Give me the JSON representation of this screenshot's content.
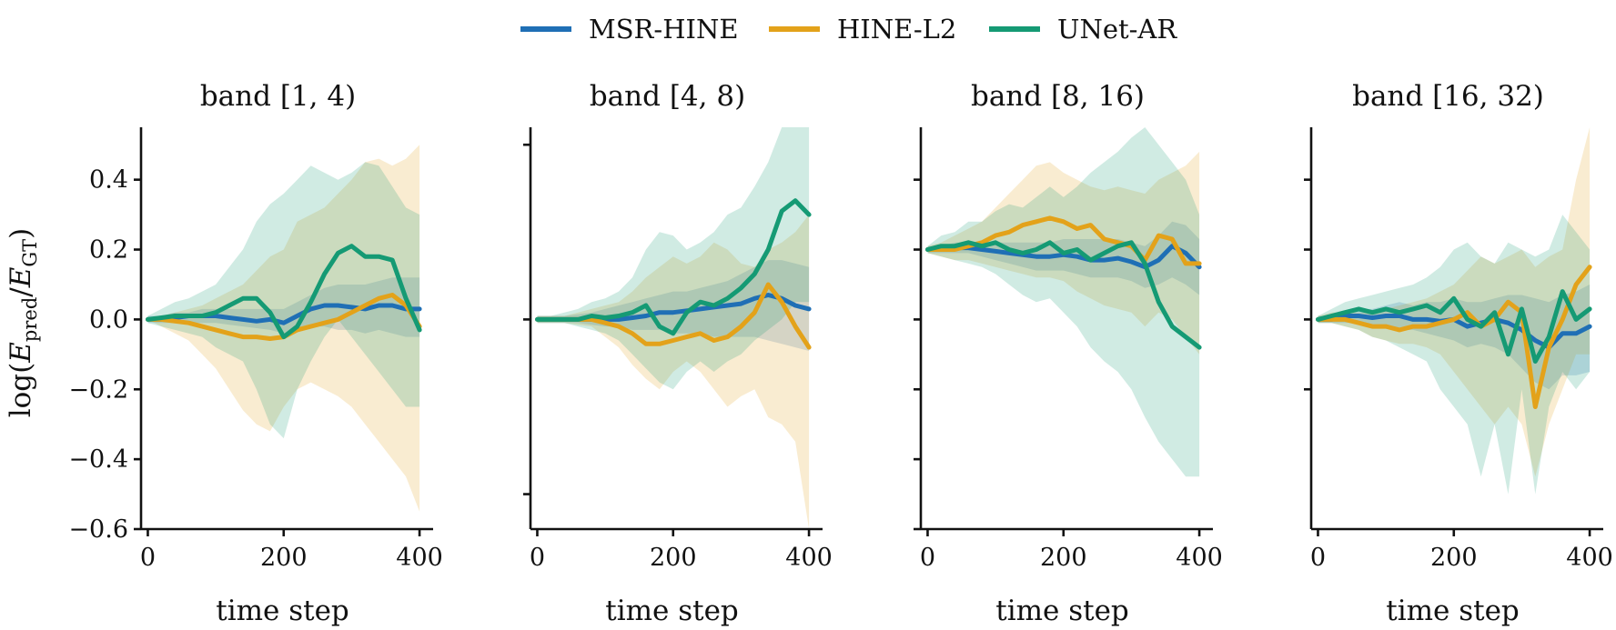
{
  "legend": {
    "entries": [
      {
        "name": "MSR-HINE",
        "color": "#1f6fb5"
      },
      {
        "name": "HINE-L2",
        "color": "#e3a21a"
      },
      {
        "name": "UNet-AR",
        "color": "#159a74"
      }
    ]
  },
  "chart_data": [
    {
      "type": "line",
      "title": "band [1, 4)",
      "xlabel": "time step",
      "ylabel": "log(E_pred/E_GT)",
      "ylim": [
        -0.6,
        0.55
      ],
      "xlim": [
        -10,
        420
      ],
      "xticks": [
        0,
        200,
        400
      ],
      "xtick_labels": [
        "0",
        "200",
        "400"
      ],
      "yticks": [
        -0.6,
        -0.4,
        -0.2,
        0.0,
        0.2,
        0.4
      ],
      "ytick_labels": [
        "−0.6",
        "−0.4",
        "−0.2",
        "0.0",
        "0.2",
        "0.4"
      ],
      "x": [
        0,
        20,
        40,
        60,
        80,
        100,
        120,
        140,
        160,
        180,
        200,
        220,
        240,
        260,
        280,
        300,
        320,
        340,
        360,
        380,
        400
      ],
      "series": [
        {
          "name": "MSR-HINE",
          "values": [
            0,
            0,
            0.005,
            0.01,
            0.01,
            0.01,
            0.005,
            0.0,
            -0.005,
            0.0,
            -0.01,
            0.01,
            0.03,
            0.04,
            0.04,
            0.035,
            0.03,
            0.04,
            0.04,
            0.03,
            0.03
          ],
          "lower": [
            -0.01,
            -0.01,
            -0.01,
            -0.01,
            -0.01,
            -0.01,
            -0.015,
            -0.02,
            -0.025,
            -0.03,
            -0.04,
            -0.03,
            -0.02,
            -0.02,
            -0.03,
            -0.03,
            -0.04,
            -0.03,
            -0.04,
            -0.05,
            -0.05
          ],
          "upper": [
            0.01,
            0.01,
            0.02,
            0.02,
            0.03,
            0.03,
            0.03,
            0.03,
            0.03,
            0.03,
            0.03,
            0.05,
            0.07,
            0.09,
            0.1,
            0.1,
            0.1,
            0.11,
            0.12,
            0.12,
            0.12
          ]
        },
        {
          "name": "HINE-L2",
          "values": [
            0,
            0,
            -0.005,
            -0.01,
            -0.02,
            -0.03,
            -0.04,
            -0.05,
            -0.05,
            -0.055,
            -0.05,
            -0.03,
            -0.02,
            -0.01,
            0.0,
            0.02,
            0.04,
            0.06,
            0.07,
            0.04,
            -0.02
          ],
          "lower": [
            0,
            -0.02,
            -0.04,
            -0.06,
            -0.1,
            -0.14,
            -0.2,
            -0.26,
            -0.3,
            -0.32,
            -0.25,
            -0.2,
            -0.18,
            -0.2,
            -0.22,
            -0.25,
            -0.3,
            -0.35,
            -0.4,
            -0.45,
            -0.55
          ],
          "upper": [
            0,
            0.01,
            0.02,
            0.03,
            0.04,
            0.06,
            0.08,
            0.1,
            0.14,
            0.18,
            0.2,
            0.28,
            0.3,
            0.32,
            0.36,
            0.4,
            0.45,
            0.46,
            0.44,
            0.46,
            0.5
          ]
        },
        {
          "name": "UNet-AR",
          "values": [
            0,
            0.005,
            0.01,
            0.01,
            0.01,
            0.02,
            0.04,
            0.06,
            0.06,
            0.02,
            -0.05,
            -0.02,
            0.05,
            0.13,
            0.19,
            0.21,
            0.18,
            0.18,
            0.17,
            0.06,
            -0.03
          ],
          "lower": [
            -0.01,
            -0.02,
            -0.03,
            -0.04,
            -0.05,
            -0.08,
            -0.1,
            -0.12,
            -0.2,
            -0.3,
            -0.34,
            -0.2,
            -0.12,
            -0.05,
            0.0,
            -0.05,
            -0.1,
            -0.15,
            -0.2,
            -0.25,
            -0.25
          ],
          "upper": [
            0.01,
            0.03,
            0.05,
            0.06,
            0.08,
            0.1,
            0.15,
            0.2,
            0.28,
            0.33,
            0.36,
            0.4,
            0.44,
            0.42,
            0.4,
            0.42,
            0.45,
            0.44,
            0.38,
            0.32,
            0.3
          ]
        }
      ]
    },
    {
      "type": "line",
      "title": "band [4, 8)",
      "xlabel": "time step",
      "ylim": [
        -0.6,
        0.55
      ],
      "xlim": [
        -10,
        420
      ],
      "xticks": [
        0,
        200,
        400
      ],
      "xtick_labels": [
        "0",
        "200",
        "400"
      ],
      "yticks": [
        -0.5,
        0.0,
        0.5
      ],
      "ytick_labels": [
        "",
        "",
        ""
      ],
      "x": [
        0,
        20,
        40,
        60,
        80,
        100,
        120,
        140,
        160,
        180,
        200,
        220,
        240,
        260,
        280,
        300,
        320,
        340,
        360,
        380,
        400
      ],
      "series": [
        {
          "name": "MSR-HINE",
          "values": [
            0,
            0,
            0,
            0,
            0,
            0,
            0,
            0.005,
            0.01,
            0.02,
            0.02,
            0.025,
            0.03,
            0.035,
            0.04,
            0.045,
            0.06,
            0.07,
            0.06,
            0.04,
            0.03
          ],
          "lower": [
            -0.01,
            -0.01,
            -0.01,
            -0.01,
            -0.015,
            -0.02,
            -0.02,
            -0.03,
            -0.03,
            -0.03,
            -0.04,
            -0.04,
            -0.04,
            -0.05,
            -0.05,
            -0.05,
            -0.05,
            -0.06,
            -0.07,
            -0.08,
            -0.09
          ],
          "upper": [
            0.01,
            0.01,
            0.01,
            0.015,
            0.02,
            0.03,
            0.04,
            0.05,
            0.06,
            0.07,
            0.08,
            0.08,
            0.09,
            0.1,
            0.11,
            0.13,
            0.15,
            0.17,
            0.17,
            0.16,
            0.15
          ]
        },
        {
          "name": "HINE-L2",
          "values": [
            0,
            0,
            0,
            0,
            0,
            -0.01,
            -0.02,
            -0.04,
            -0.07,
            -0.07,
            -0.06,
            -0.05,
            -0.04,
            -0.06,
            -0.05,
            -0.02,
            0.02,
            0.1,
            0.05,
            -0.02,
            -0.08
          ],
          "lower": [
            -0.01,
            -0.01,
            -0.01,
            -0.015,
            -0.02,
            -0.05,
            -0.08,
            -0.13,
            -0.17,
            -0.2,
            -0.15,
            -0.12,
            -0.15,
            -0.2,
            -0.25,
            -0.22,
            -0.2,
            -0.28,
            -0.3,
            -0.35,
            -0.6
          ],
          "upper": [
            0.01,
            0.01,
            0.01,
            0.02,
            0.03,
            0.04,
            0.05,
            0.08,
            0.12,
            0.15,
            0.18,
            0.16,
            0.18,
            0.22,
            0.2,
            0.16,
            0.15,
            0.2,
            0.22,
            0.25,
            0.3
          ]
        },
        {
          "name": "UNet-AR",
          "values": [
            0,
            0,
            0,
            0,
            0.01,
            0.005,
            0.01,
            0.02,
            0.04,
            -0.02,
            -0.04,
            0.02,
            0.05,
            0.04,
            0.06,
            0.09,
            0.13,
            0.2,
            0.31,
            0.34,
            0.3
          ],
          "lower": [
            -0.01,
            -0.01,
            -0.01,
            -0.02,
            -0.03,
            -0.04,
            -0.06,
            -0.1,
            -0.14,
            -0.18,
            -0.2,
            -0.15,
            -0.12,
            -0.15,
            -0.12,
            -0.1,
            -0.06,
            -0.03,
            0.0,
            0.05,
            0.05
          ],
          "upper": [
            0.01,
            0.01,
            0.02,
            0.03,
            0.05,
            0.06,
            0.08,
            0.12,
            0.2,
            0.25,
            0.24,
            0.2,
            0.22,
            0.25,
            0.3,
            0.32,
            0.38,
            0.45,
            0.55,
            0.6,
            0.58
          ]
        }
      ]
    },
    {
      "type": "line",
      "title": "band [8, 16)",
      "xlabel": "time step",
      "ylim": [
        -0.6,
        0.55
      ],
      "xlim": [
        -10,
        420
      ],
      "xticks": [
        0,
        200,
        400
      ],
      "xtick_labels": [
        "0",
        "200",
        "400"
      ],
      "yticks": [
        -0.6,
        -0.4,
        -0.2,
        0.0,
        0.2,
        0.4
      ],
      "ytick_labels": [
        "",
        "",
        "",
        "",
        "",
        ""
      ],
      "x": [
        0,
        20,
        40,
        60,
        80,
        100,
        120,
        140,
        160,
        180,
        200,
        220,
        240,
        260,
        280,
        300,
        320,
        340,
        360,
        380,
        400
      ],
      "series": [
        {
          "name": "MSR-HINE",
          "values": [
            0.2,
            0.2,
            0.205,
            0.205,
            0.2,
            0.195,
            0.19,
            0.185,
            0.18,
            0.18,
            0.185,
            0.18,
            0.17,
            0.17,
            0.175,
            0.165,
            0.15,
            0.17,
            0.21,
            0.19,
            0.15
          ],
          "lower": [
            0.19,
            0.19,
            0.19,
            0.19,
            0.18,
            0.17,
            0.16,
            0.15,
            0.14,
            0.14,
            0.14,
            0.13,
            0.12,
            0.12,
            0.12,
            0.11,
            0.09,
            0.1,
            0.12,
            0.1,
            0.07
          ],
          "upper": [
            0.21,
            0.21,
            0.22,
            0.22,
            0.22,
            0.22,
            0.22,
            0.22,
            0.22,
            0.22,
            0.23,
            0.23,
            0.23,
            0.23,
            0.23,
            0.22,
            0.21,
            0.24,
            0.28,
            0.27,
            0.23
          ]
        },
        {
          "name": "HINE-L2",
          "values": [
            0.2,
            0.2,
            0.2,
            0.21,
            0.22,
            0.24,
            0.25,
            0.27,
            0.28,
            0.29,
            0.28,
            0.26,
            0.27,
            0.23,
            0.22,
            0.21,
            0.17,
            0.24,
            0.23,
            0.16,
            0.16
          ],
          "lower": [
            0.19,
            0.18,
            0.17,
            0.17,
            0.16,
            0.15,
            0.14,
            0.13,
            0.12,
            0.12,
            0.11,
            0.08,
            0.06,
            0.04,
            0.03,
            0.02,
            -0.02,
            0.02,
            0.0,
            -0.05,
            -0.1
          ],
          "upper": [
            0.21,
            0.22,
            0.24,
            0.26,
            0.28,
            0.32,
            0.36,
            0.4,
            0.44,
            0.45,
            0.42,
            0.4,
            0.38,
            0.37,
            0.38,
            0.37,
            0.36,
            0.4,
            0.42,
            0.44,
            0.48
          ]
        },
        {
          "name": "UNet-AR",
          "values": [
            0.2,
            0.21,
            0.21,
            0.22,
            0.21,
            0.22,
            0.2,
            0.19,
            0.2,
            0.22,
            0.19,
            0.2,
            0.17,
            0.19,
            0.21,
            0.22,
            0.16,
            0.05,
            -0.02,
            -0.05,
            -0.08
          ],
          "lower": [
            0.19,
            0.18,
            0.17,
            0.16,
            0.15,
            0.13,
            0.1,
            0.07,
            0.05,
            0.06,
            0.02,
            -0.02,
            -0.08,
            -0.12,
            -0.15,
            -0.2,
            -0.28,
            -0.35,
            -0.4,
            -0.45,
            -0.45
          ],
          "upper": [
            0.21,
            0.24,
            0.25,
            0.28,
            0.28,
            0.31,
            0.33,
            0.32,
            0.35,
            0.38,
            0.35,
            0.38,
            0.42,
            0.45,
            0.48,
            0.52,
            0.55,
            0.5,
            0.45,
            0.4,
            0.3
          ]
        }
      ]
    },
    {
      "type": "line",
      "title": "band [16, 32)",
      "xlabel": "time step",
      "ylim": [
        -0.6,
        0.55
      ],
      "xlim": [
        -10,
        420
      ],
      "xticks": [
        0,
        200,
        400
      ],
      "xtick_labels": [
        "0",
        "200",
        "400"
      ],
      "yticks": [
        -0.2,
        0.0,
        0.2,
        0.4
      ],
      "ytick_labels": [
        "",
        "",
        "",
        ""
      ],
      "x": [
        0,
        20,
        40,
        60,
        80,
        100,
        120,
        140,
        160,
        180,
        200,
        220,
        240,
        260,
        280,
        300,
        320,
        340,
        360,
        380,
        400
      ],
      "series": [
        {
          "name": "MSR-HINE",
          "values": [
            0,
            0,
            0.01,
            0.01,
            0.005,
            0.01,
            0.01,
            0.0,
            0.0,
            -0.005,
            0.0,
            -0.02,
            -0.01,
            0.0,
            -0.01,
            -0.03,
            -0.06,
            -0.08,
            -0.04,
            -0.04,
            -0.02
          ],
          "lower": [
            -0.01,
            -0.01,
            -0.01,
            -0.01,
            -0.02,
            -0.02,
            -0.03,
            -0.03,
            -0.04,
            -0.05,
            -0.06,
            -0.08,
            -0.07,
            -0.08,
            -0.1,
            -0.14,
            -0.18,
            -0.2,
            -0.16,
            -0.16,
            -0.15
          ],
          "upper": [
            0.01,
            0.01,
            0.02,
            0.03,
            0.03,
            0.04,
            0.05,
            0.04,
            0.05,
            0.05,
            0.06,
            0.05,
            0.05,
            0.06,
            0.07,
            0.07,
            0.06,
            0.05,
            0.07,
            0.08,
            0.1
          ]
        },
        {
          "name": "HINE-L2",
          "values": [
            0,
            0,
            0,
            -0.01,
            -0.02,
            -0.02,
            -0.03,
            -0.02,
            -0.02,
            -0.01,
            0.0,
            0.02,
            -0.02,
            0.0,
            0.05,
            0.02,
            -0.25,
            -0.08,
            0.0,
            0.1,
            0.15
          ],
          "lower": [
            -0.01,
            -0.01,
            -0.02,
            -0.03,
            -0.05,
            -0.06,
            -0.07,
            -0.07,
            -0.08,
            -0.1,
            -0.15,
            -0.2,
            -0.25,
            -0.3,
            -0.25,
            -0.3,
            -0.45,
            -0.3,
            -0.2,
            -0.1,
            -0.1
          ],
          "upper": [
            0.01,
            0.02,
            0.02,
            0.02,
            0.02,
            0.03,
            0.04,
            0.05,
            0.06,
            0.08,
            0.1,
            0.14,
            0.18,
            0.16,
            0.18,
            0.2,
            0.15,
            0.18,
            0.2,
            0.4,
            0.55
          ]
        },
        {
          "name": "UNet-AR",
          "values": [
            0,
            0.01,
            0.02,
            0.03,
            0.02,
            0.03,
            0.02,
            0.03,
            0.04,
            0.02,
            0.06,
            0.0,
            -0.02,
            0.02,
            -0.1,
            0.03,
            -0.12,
            -0.05,
            0.08,
            0.0,
            0.03
          ],
          "lower": [
            -0.01,
            -0.01,
            -0.02,
            -0.03,
            -0.05,
            -0.06,
            -0.08,
            -0.1,
            -0.12,
            -0.2,
            -0.25,
            -0.3,
            -0.45,
            -0.3,
            -0.5,
            -0.2,
            -0.5,
            -0.25,
            -0.15,
            -0.2,
            -0.15
          ],
          "upper": [
            0.01,
            0.03,
            0.05,
            0.06,
            0.07,
            0.08,
            0.09,
            0.1,
            0.12,
            0.15,
            0.2,
            0.22,
            0.18,
            0.16,
            0.22,
            0.2,
            0.18,
            0.2,
            0.3,
            0.25,
            0.2
          ]
        }
      ]
    }
  ]
}
